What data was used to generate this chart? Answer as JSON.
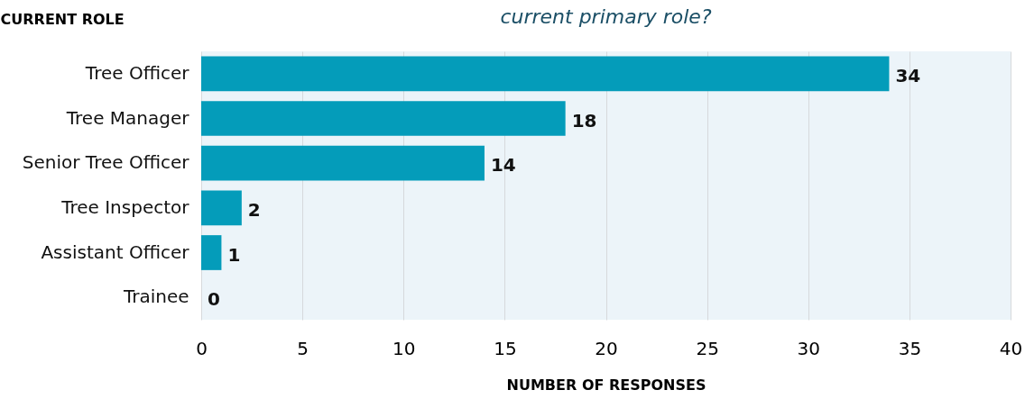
{
  "chart_data": {
    "type": "bar",
    "orientation": "horizontal",
    "title": "current primary role?",
    "ylabel": "CURRENT ROLE",
    "xlabel": "NUMBER OF RESPONSES",
    "categories": [
      "Tree Officer",
      "Tree Manager",
      "Senior Tree Officer",
      "Tree Inspector",
      "Assistant Officer",
      "Trainee"
    ],
    "values": [
      34,
      18,
      14,
      2,
      1,
      0
    ],
    "color": "#049cba",
    "xlim": [
      0,
      40
    ],
    "xticks": [
      0,
      5,
      10,
      15,
      20,
      25,
      30,
      35,
      40
    ],
    "grid": "x",
    "data_labels": true
  }
}
